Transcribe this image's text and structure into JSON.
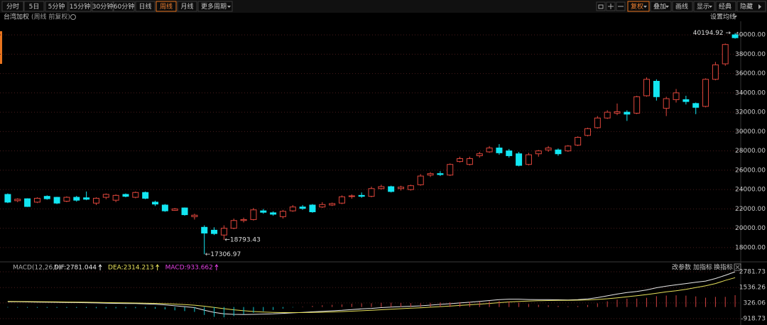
{
  "toolbar": {
    "periods": [
      "分时",
      "5日",
      "5分钟",
      "15分钟",
      "30分钟",
      "60分钟",
      "日线",
      "周线",
      "月线",
      "更多周期"
    ],
    "tools": [
      "复权",
      "叠加",
      "画线",
      "显示",
      "经典",
      "隐藏"
    ]
  },
  "header": {
    "title": "台湾加权",
    "subtitle": "(周线 前复权)",
    "ma_setting": "设置均线"
  },
  "indicator_menu": [
    "改参数",
    "加指标",
    "换指标"
  ],
  "chart_data": [
    {
      "type": "candlestick",
      "up_color": "#e0463c",
      "down_color": "#12e6f2",
      "grid": true,
      "ylim": [
        16600,
        41400
      ],
      "yticks": [
        {
          "value": 18000,
          "label": "18000.00"
        },
        {
          "value": 20000,
          "label": "20000.00"
        },
        {
          "value": 22000,
          "label": "22000.00"
        },
        {
          "value": 24000,
          "label": "24000.00"
        },
        {
          "value": 26000,
          "label": "26000.00"
        },
        {
          "value": 28000,
          "label": "28000.00"
        },
        {
          "value": 30000,
          "label": "30000.00"
        },
        {
          "value": 32000,
          "label": "32000.00"
        },
        {
          "value": 34000,
          "label": "34000.00"
        },
        {
          "value": 36000,
          "label": "36000.00"
        },
        {
          "value": 38000,
          "label": "38000.00"
        },
        {
          "value": 40000,
          "label": "40000.00"
        }
      ],
      "open": [
        23500,
        22850,
        23050,
        22700,
        23300,
        23200,
        22800,
        23200,
        23150,
        22600,
        23200,
        22900,
        23500,
        23200,
        23700,
        22700,
        22400,
        21850,
        22100,
        21200,
        20100,
        19800,
        19300,
        20000,
        20800,
        20900,
        21800,
        21600,
        21200,
        21800,
        22200,
        22400,
        22200,
        22400,
        22600,
        23300,
        23400,
        23300,
        24100,
        24300,
        24100,
        24000,
        24500,
        25500,
        25650,
        25500,
        26900,
        26600,
        27500,
        27900,
        28300,
        28000,
        27700,
        26600,
        27700,
        28100,
        28100,
        28000,
        28600,
        29600,
        30400,
        31400,
        31900,
        32000,
        31900,
        33700,
        35200,
        32400,
        33300,
        33300,
        32900,
        32600,
        35400,
        37000,
        40000
      ],
      "high": [
        23600,
        23100,
        23100,
        23200,
        23400,
        23250,
        23300,
        23350,
        23800,
        23200,
        23600,
        23500,
        23600,
        23800,
        23800,
        22850,
        22500,
        22100,
        22150,
        21500,
        20300,
        20100,
        20300,
        21000,
        21100,
        22100,
        22000,
        21750,
        21900,
        22400,
        22400,
        22500,
        22700,
        22650,
        23400,
        23500,
        23700,
        24300,
        24500,
        24400,
        24400,
        24500,
        25600,
        25800,
        25900,
        26700,
        27400,
        27400,
        27900,
        28500,
        28700,
        28200,
        27900,
        27800,
        28100,
        28500,
        28250,
        28600,
        29500,
        30400,
        31600,
        32200,
        32900,
        32200,
        33700,
        35600,
        35400,
        33600,
        34400,
        33700,
        33000,
        35500,
        37200,
        39100,
        40194.92
      ],
      "low": [
        22600,
        22700,
        22200,
        22600,
        22950,
        22500,
        22700,
        22750,
        22900,
        22400,
        23000,
        22700,
        23200,
        23100,
        23000,
        22300,
        21700,
        21800,
        21300,
        20900,
        17306.97,
        19300,
        18793.43,
        19900,
        20600,
        20800,
        21500,
        21300,
        21000,
        21700,
        21900,
        21600,
        22100,
        22300,
        22500,
        23050,
        23150,
        23200,
        24000,
        23700,
        23900,
        23900,
        24400,
        25300,
        25400,
        25400,
        26800,
        26500,
        27300,
        27800,
        27600,
        27300,
        26400,
        26500,
        27400,
        27900,
        27500,
        27900,
        28500,
        29500,
        30300,
        31300,
        31700,
        31100,
        31800,
        33600,
        33200,
        31600,
        33000,
        32800,
        31800,
        32500,
        35300,
        36800,
        39600
      ],
      "close": [
        22700,
        23000,
        22250,
        23100,
        23050,
        22600,
        23200,
        22900,
        23000,
        23100,
        23500,
        23400,
        23300,
        23700,
        23100,
        22500,
        21800,
        22000,
        21400,
        21350,
        19500,
        19450,
        20000,
        20800,
        20900,
        21900,
        21650,
        21450,
        21750,
        22200,
        22050,
        21700,
        22450,
        22550,
        23250,
        23350,
        23300,
        24100,
        24300,
        23800,
        24250,
        24400,
        25400,
        25650,
        25550,
        26600,
        27200,
        27200,
        27700,
        28300,
        27800,
        27500,
        26500,
        27600,
        28000,
        28300,
        27700,
        28500,
        29400,
        30300,
        31400,
        32000,
        32050,
        31800,
        33600,
        35400,
        33600,
        33400,
        34000,
        33100,
        32500,
        35400,
        36900,
        39000,
        39700
      ],
      "annotations": [
        {
          "text": "←17306.97",
          "value": 17306.97
        },
        {
          "text": "←18793.43",
          "value": 18793.43
        },
        {
          "text": "40194.92 →",
          "value": 40194.92
        }
      ]
    },
    {
      "type": "macd",
      "title": "MACD(12,26,9)",
      "ylim": [
        -1420,
        3510
      ],
      "yticks": [
        2781.73,
        1536.26,
        326.06,
        -918.73
      ],
      "series": [
        {
          "name": "DIF:2781.044",
          "color": "#e8e8e8",
          "values": [
            420,
            410,
            400,
            390,
            380,
            370,
            360,
            350,
            340,
            320,
            300,
            290,
            280,
            270,
            250,
            220,
            170,
            100,
            30,
            -50,
            -250,
            -420,
            -540,
            -580,
            -590,
            -580,
            -560,
            -540,
            -500,
            -460,
            -420,
            -380,
            -340,
            -300,
            -260,
            -200,
            -150,
            -110,
            -50,
            0,
            30,
            60,
            90,
            150,
            210,
            260,
            320,
            380,
            440,
            510,
            580,
            620,
            620,
            590,
            580,
            580,
            570,
            560,
            580,
            640,
            740,
            880,
            1020,
            1140,
            1230,
            1350,
            1520,
            1650,
            1750,
            1850,
            1950,
            2050,
            2250,
            2500,
            2781.044
          ]
        },
        {
          "name": "DEA:2314.213",
          "color": "#e6e05a",
          "values": [
            440,
            436,
            430,
            422,
            414,
            405,
            396,
            387,
            378,
            366,
            353,
            340,
            328,
            316,
            303,
            287,
            264,
            231,
            191,
            143,
            64,
            -33,
            -134,
            -223,
            -296,
            -353,
            -394,
            -423,
            -438,
            -442,
            -438,
            -426,
            -409,
            -387,
            -362,
            -330,
            -294,
            -257,
            -216,
            -173,
            -132,
            -94,
            -57,
            -16,
            29,
            75,
            124,
            175,
            228,
            284,
            343,
            398,
            443,
            472,
            494,
            511,
            523,
            530,
            540,
            560,
            596,
            653,
            727,
            810,
            894,
            985,
            1092,
            1198,
            1288,
            1400,
            1530,
            1680,
            1850,
            2100,
            2314.213
          ]
        },
        {
          "name": "MACD:933.662",
          "color": "#e040e0",
          "up_color": "#d04040",
          "down_color": "#10c8d0",
          "values": [
            -40,
            -52,
            -60,
            -64,
            -68,
            -70,
            -72,
            -74,
            -76,
            -92,
            -106,
            -100,
            -96,
            -92,
            -106,
            -134,
            -188,
            -262,
            -322,
            -386,
            -628,
            -774,
            -812,
            -714,
            -588,
            -454,
            -332,
            -234,
            -124,
            -36,
            36,
            92,
            138,
            174,
            204,
            260,
            288,
            294,
            332,
            346,
            324,
            308,
            294,
            332,
            362,
            370,
            392,
            410,
            424,
            452,
            474,
            444,
            354,
            236,
            172,
            138,
            94,
            60,
            80,
            160,
            288,
            454,
            586,
            660,
            672,
            730,
            856,
            904,
            924,
            900,
            840,
            740,
            800,
            800,
            933.662
          ]
        }
      ]
    }
  ]
}
